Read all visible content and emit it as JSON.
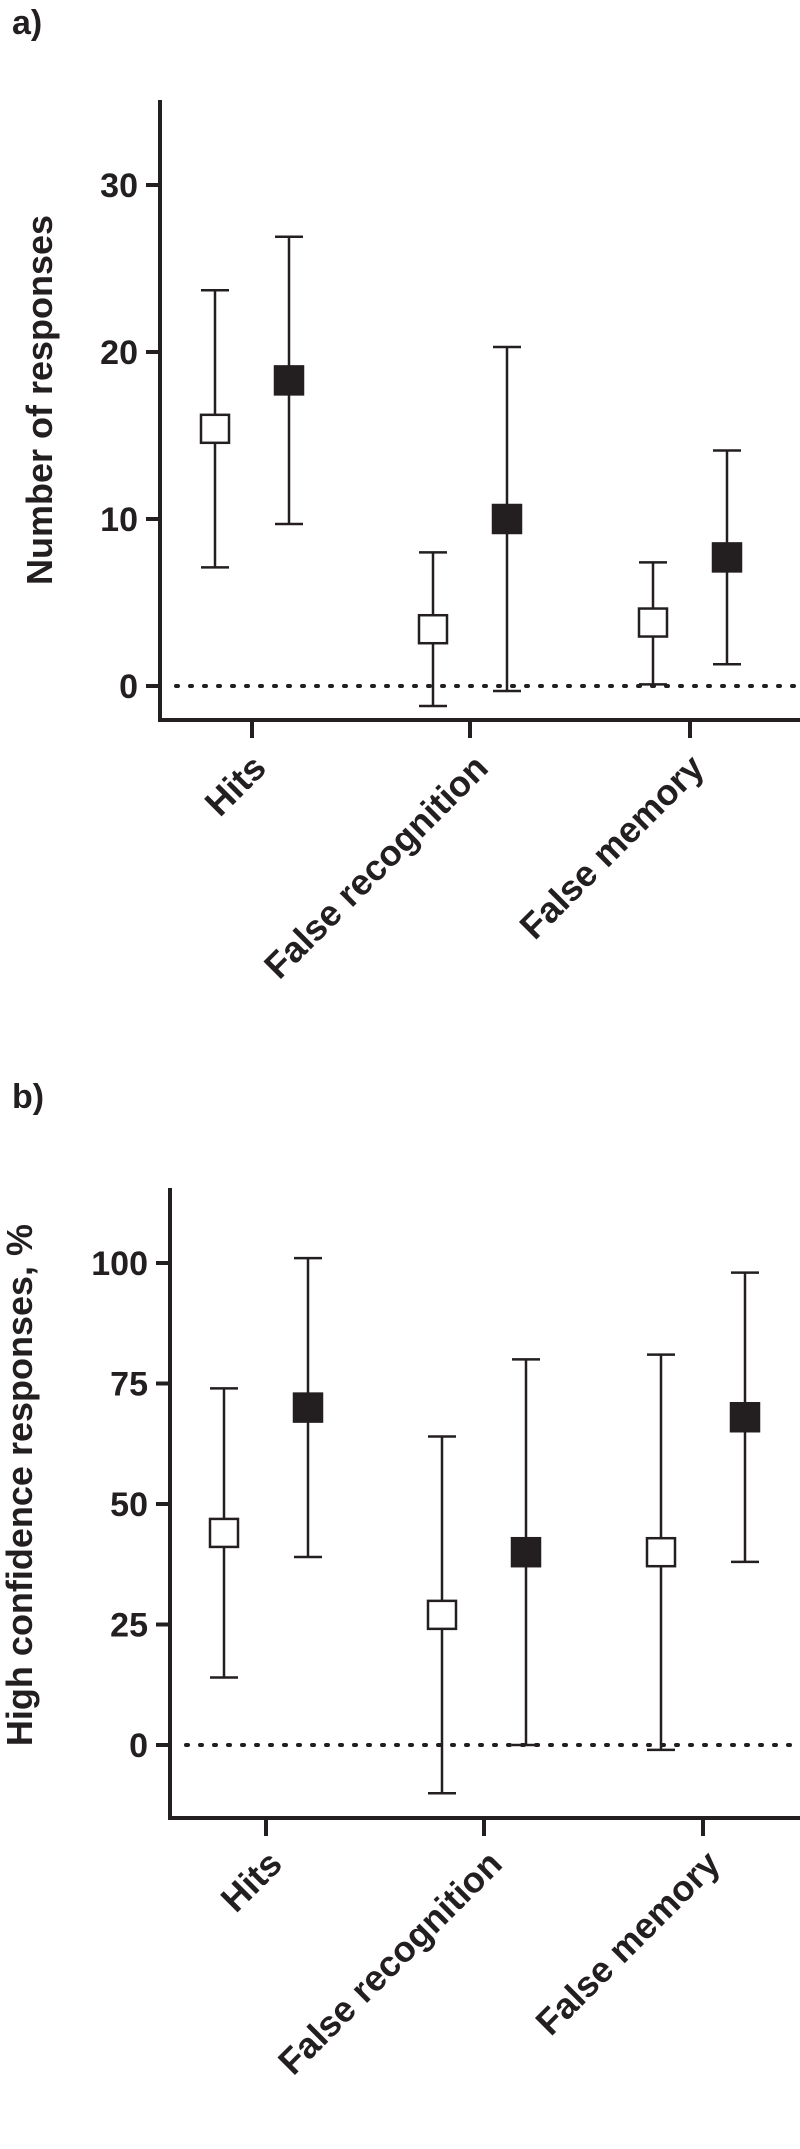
{
  "chart_data": [
    {
      "panel": "a)",
      "type": "scatter",
      "ylabel": "Number of responses",
      "categories": [
        "Hits",
        "False recognition",
        "False memory"
      ],
      "ylim": [
        -2,
        35
      ],
      "yticks": [
        0,
        10,
        20,
        30
      ],
      "reference_line": {
        "y": 0,
        "style": "dotted"
      },
      "series": [
        {
          "marker": "open-square",
          "color": "#ffffff",
          "values": [
            15.4,
            3.4,
            3.8
          ],
          "err_low": [
            7.1,
            -1.2,
            0.1
          ],
          "err_high": [
            23.7,
            8.0,
            7.4
          ]
        },
        {
          "marker": "filled-square",
          "color": "#231f20",
          "values": [
            18.3,
            10.0,
            7.7
          ],
          "err_low": [
            9.7,
            -0.3,
            1.3
          ],
          "err_high": [
            26.9,
            20.3,
            14.1
          ]
        }
      ]
    },
    {
      "panel": "b)",
      "type": "scatter",
      "ylabel": "High confidence responses, %",
      "categories": [
        "Hits",
        "False recognition",
        "False memory"
      ],
      "ylim": [
        -15,
        115
      ],
      "yticks": [
        0,
        25,
        50,
        75,
        100
      ],
      "reference_line": {
        "y": 0,
        "style": "dotted"
      },
      "series": [
        {
          "marker": "open-square",
          "color": "#ffffff",
          "values": [
            44,
            27,
            40
          ],
          "err_low": [
            14,
            -10,
            -1
          ],
          "err_high": [
            74,
            64,
            81
          ]
        },
        {
          "marker": "filled-square",
          "color": "#231f20",
          "values": [
            70,
            40,
            68
          ],
          "err_low": [
            39,
            0,
            38
          ],
          "err_high": [
            101,
            80,
            98
          ]
        }
      ]
    }
  ]
}
